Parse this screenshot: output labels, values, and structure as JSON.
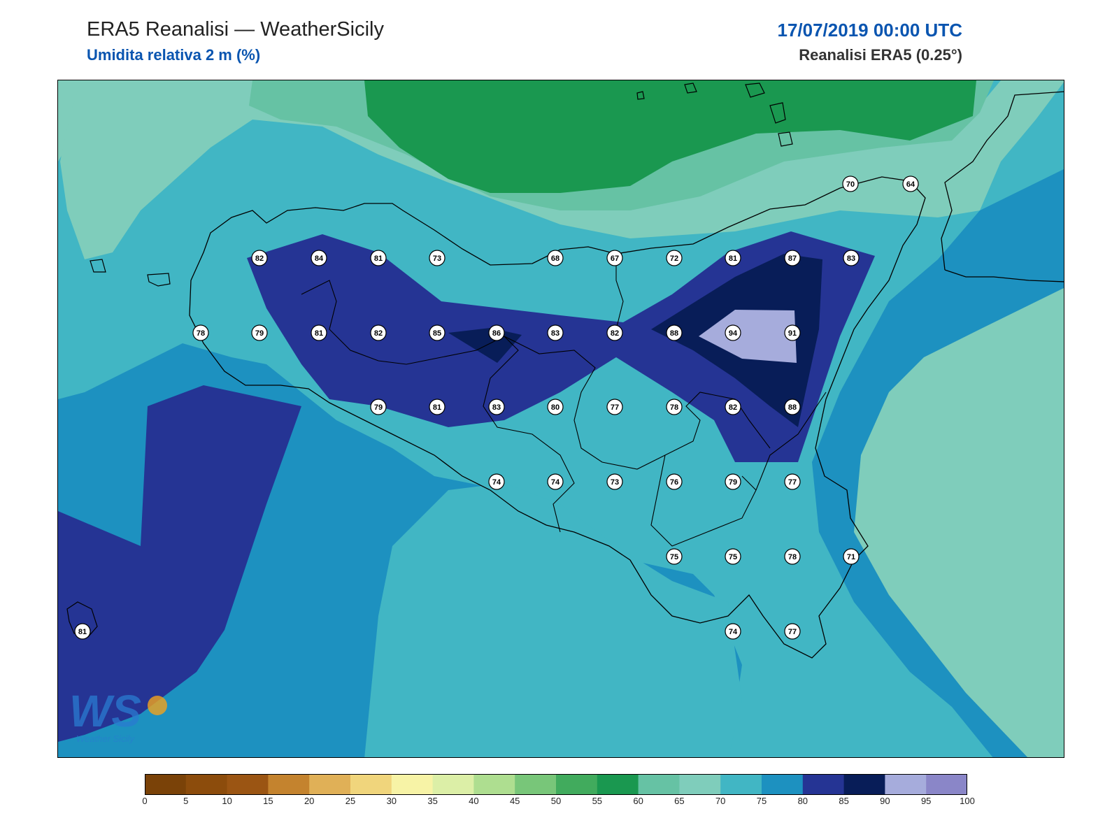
{
  "header": {
    "title": "ERA5 Reanalisi — WeatherSicily",
    "subtitle": "Umidita relativa 2 m (%)",
    "datetime": "17/07/2019 00:00 UTC",
    "source": "Reanalisi ERA5 (0.25°)"
  },
  "logo": {
    "text": "WS",
    "caption": "Weather Sicily"
  },
  "colorbar": {
    "ticks": [
      "0",
      "5",
      "10",
      "15",
      "20",
      "25",
      "30",
      "35",
      "40",
      "45",
      "50",
      "55",
      "60",
      "65",
      "70",
      "75",
      "80",
      "85",
      "90",
      "95",
      "100"
    ],
    "colors": [
      "#7a4208",
      "#8c4c0c",
      "#9b5513",
      "#c4832e",
      "#e0b057",
      "#f0d57c",
      "#f7f3a6",
      "#dcefa7",
      "#aede90",
      "#78c679",
      "#41ab5d",
      "#1a9850",
      "#66c2a4",
      "#7fcdbb",
      "#41b6c4",
      "#1d91c0",
      "#253494",
      "#081d58",
      "#a6acdc",
      "#8a86c8"
    ]
  },
  "stations": [
    {
      "v": "70",
      "gx": 1215,
      "gy": 262
    },
    {
      "v": "64",
      "gx": 1301,
      "gy": 262
    },
    {
      "v": "82",
      "gx": 370,
      "gy": 368
    },
    {
      "v": "84",
      "gx": 455,
      "gy": 368
    },
    {
      "v": "81",
      "gx": 540,
      "gy": 368
    },
    {
      "v": "73",
      "gx": 624,
      "gy": 368
    },
    {
      "v": "68",
      "gx": 793,
      "gy": 368
    },
    {
      "v": "67",
      "gx": 878,
      "gy": 368
    },
    {
      "v": "72",
      "gx": 963,
      "gy": 368
    },
    {
      "v": "81",
      "gx": 1047,
      "gy": 368
    },
    {
      "v": "87",
      "gx": 1132,
      "gy": 368
    },
    {
      "v": "83",
      "gx": 1216,
      "gy": 368
    },
    {
      "v": "78",
      "gx": 286,
      "gy": 475
    },
    {
      "v": "79",
      "gx": 370,
      "gy": 475
    },
    {
      "v": "81",
      "gx": 455,
      "gy": 475
    },
    {
      "v": "82",
      "gx": 540,
      "gy": 475
    },
    {
      "v": "85",
      "gx": 624,
      "gy": 475
    },
    {
      "v": "86",
      "gx": 709,
      "gy": 475
    },
    {
      "v": "83",
      "gx": 793,
      "gy": 475
    },
    {
      "v": "82",
      "gx": 878,
      "gy": 475
    },
    {
      "v": "88",
      "gx": 963,
      "gy": 475
    },
    {
      "v": "94",
      "gx": 1047,
      "gy": 475
    },
    {
      "v": "91",
      "gx": 1132,
      "gy": 475
    },
    {
      "v": "79",
      "gx": 540,
      "gy": 581
    },
    {
      "v": "81",
      "gx": 624,
      "gy": 581
    },
    {
      "v": "83",
      "gx": 709,
      "gy": 581
    },
    {
      "v": "80",
      "gx": 793,
      "gy": 581
    },
    {
      "v": "77",
      "gx": 878,
      "gy": 581
    },
    {
      "v": "78",
      "gx": 963,
      "gy": 581
    },
    {
      "v": "82",
      "gx": 1047,
      "gy": 581
    },
    {
      "v": "88",
      "gx": 1132,
      "gy": 581
    },
    {
      "v": "74",
      "gx": 709,
      "gy": 688
    },
    {
      "v": "74",
      "gx": 793,
      "gy": 688
    },
    {
      "v": "73",
      "gx": 878,
      "gy": 688
    },
    {
      "v": "76",
      "gx": 963,
      "gy": 688
    },
    {
      "v": "79",
      "gx": 1047,
      "gy": 688
    },
    {
      "v": "77",
      "gx": 1132,
      "gy": 688
    },
    {
      "v": "75",
      "gx": 963,
      "gy": 795
    },
    {
      "v": "75",
      "gx": 1047,
      "gy": 795
    },
    {
      "v": "78",
      "gx": 1132,
      "gy": 795
    },
    {
      "v": "71",
      "gx": 1216,
      "gy": 795
    },
    {
      "v": "81",
      "gx": 117,
      "gy": 902
    },
    {
      "v": "74",
      "gx": 1047,
      "gy": 902
    },
    {
      "v": "77",
      "gx": 1132,
      "gy": 902
    }
  ]
}
